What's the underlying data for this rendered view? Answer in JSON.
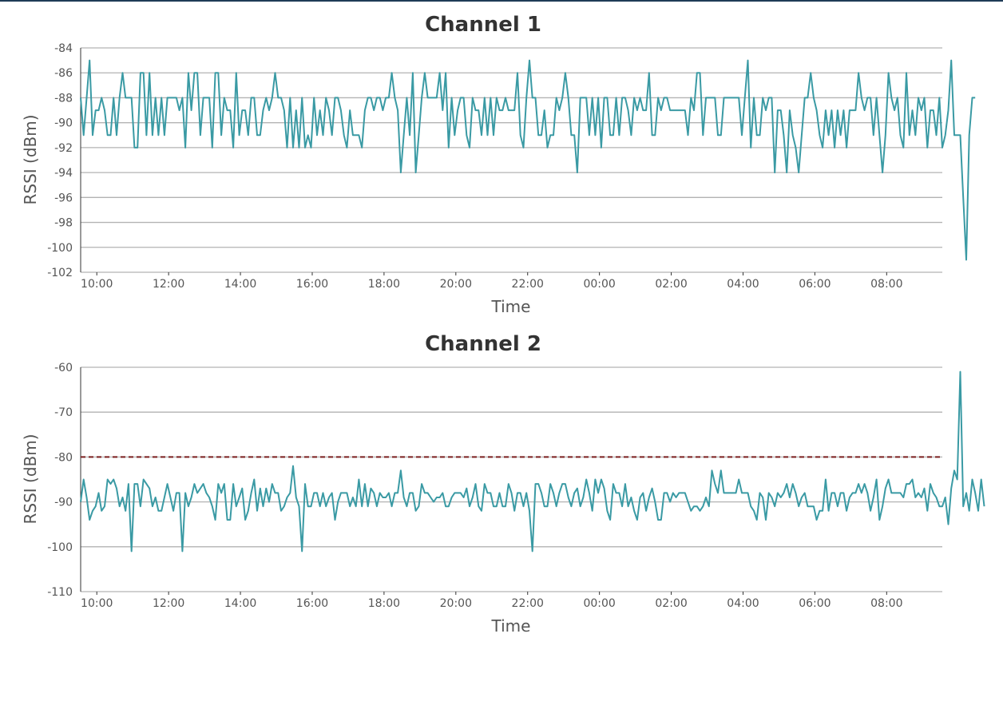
{
  "chart_data": [
    {
      "type": "line",
      "title": "Channel 1",
      "xlabel": "Time",
      "ylabel": "RSSI (dBm)",
      "x_tick_labels": [
        "10:00",
        "12:00",
        "14:00",
        "16:00",
        "18:00",
        "20:00",
        "22:00",
        "00:00",
        "02:00",
        "04:00",
        "06:00",
        "08:00"
      ],
      "x_range_hours": [
        9.55,
        33.55
      ],
      "ylim": [
        -102,
        -84
      ],
      "y_ticks": [
        -84,
        -86,
        -88,
        -90,
        -92,
        -94,
        -96,
        -98,
        -100,
        -102
      ],
      "grid": true,
      "color": "#3a9aa4",
      "series": [
        {
          "interval_minutes": 5,
          "values": [
            -88,
            -91,
            -88,
            -85,
            -91,
            -89,
            -89,
            -88,
            -89,
            -91,
            -91,
            -88,
            -91,
            -88,
            -86,
            -88,
            -88,
            -88,
            -92,
            -92,
            -86,
            -86,
            -91,
            -86,
            -91,
            -88,
            -91,
            -88,
            -91,
            -88,
            -88,
            -88,
            -88,
            -89,
            -88,
            -92,
            -86,
            -89,
            -86,
            -86,
            -91,
            -88,
            -88,
            -88,
            -92,
            -86,
            -86,
            -91,
            -88,
            -89,
            -89,
            -92,
            -86,
            -91,
            -89,
            -89,
            -91,
            -88,
            -88,
            -91,
            -91,
            -89,
            -88,
            -89,
            -88,
            -86,
            -88,
            -88,
            -89,
            -92,
            -88,
            -92,
            -89,
            -92,
            -88,
            -92,
            -91,
            -92,
            -88,
            -91,
            -89,
            -91,
            -88,
            -89,
            -91,
            -88,
            -88,
            -89,
            -91,
            -92,
            -89,
            -91,
            -91,
            -91,
            -92,
            -89,
            -88,
            -88,
            -89,
            -88,
            -88,
            -89,
            -88,
            -88,
            -86,
            -88,
            -89,
            -94,
            -91,
            -88,
            -91,
            -86,
            -94,
            -91,
            -88,
            -86,
            -88,
            -88,
            -88,
            -88,
            -86,
            -89,
            -86,
            -92,
            -88,
            -91,
            -89,
            -88,
            -88,
            -91,
            -92,
            -88,
            -89,
            -89,
            -91,
            -88,
            -91,
            -88,
            -91,
            -88,
            -89,
            -89,
            -88,
            -89,
            -89,
            -89,
            -86,
            -91,
            -92,
            -88,
            -85,
            -88,
            -88,
            -91,
            -91,
            -89,
            -92,
            -91,
            -91,
            -88,
            -89,
            -88,
            -86,
            -88,
            -91,
            -91,
            -94,
            -88,
            -88,
            -88,
            -91,
            -88,
            -91,
            -88,
            -92,
            -88,
            -88,
            -91,
            -91,
            -88,
            -91,
            -88,
            -88,
            -89,
            -91,
            -88,
            -89,
            -88,
            -89,
            -89,
            -86,
            -91,
            -91,
            -88,
            -89,
            -88,
            -88,
            -89,
            -89,
            -89,
            -89,
            -89,
            -89,
            -91,
            -88,
            -89,
            -86,
            -86,
            -91,
            -88,
            -88,
            -88,
            -88,
            -91,
            -91,
            -88,
            -88,
            -88,
            -88,
            -88,
            -88,
            -91,
            -88,
            -85,
            -92,
            -88,
            -91,
            -91,
            -88,
            -89,
            -88,
            -88,
            -94,
            -89,
            -89,
            -91,
            -94,
            -89,
            -91,
            -92,
            -94,
            -91,
            -88,
            -88,
            -86,
            -88,
            -89,
            -91,
            -92,
            -89,
            -91,
            -89,
            -92,
            -89,
            -91,
            -89,
            -92,
            -89,
            -89,
            -89,
            -86,
            -88,
            -89,
            -88,
            -88,
            -91,
            -88,
            -91,
            -94,
            -91,
            -86,
            -88,
            -89,
            -88,
            -91,
            -92,
            -86,
            -91,
            -89,
            -91,
            -88,
            -89,
            -88,
            -92,
            -89,
            -89,
            -91,
            -88,
            -92,
            -91,
            -89,
            -85,
            -91,
            -91,
            -91,
            -96,
            -101,
            -91,
            -88,
            -88
          ]
        }
      ]
    },
    {
      "type": "line",
      "title": "Channel 2",
      "xlabel": "Time",
      "ylabel": "RSSI (dBm)",
      "x_tick_labels": [
        "10:00",
        "12:00",
        "14:00",
        "16:00",
        "18:00",
        "20:00",
        "22:00",
        "00:00",
        "02:00",
        "04:00",
        "06:00",
        "08:00"
      ],
      "x_range_hours": [
        9.55,
        33.55
      ],
      "ylim": [
        -110,
        -60
      ],
      "y_ticks": [
        -60,
        -70,
        -80,
        -90,
        -100,
        -110
      ],
      "grid": true,
      "color": "#3a9aa4",
      "threshold": {
        "value": -80,
        "color": "#7a1f1f",
        "style": "dashed"
      },
      "series": [
        {
          "interval_minutes": 5,
          "values": [
            -90,
            -85,
            -89,
            -94,
            -92,
            -91,
            -88,
            -92,
            -91,
            -85,
            -86,
            -85,
            -87,
            -91,
            -89,
            -92,
            -86,
            -101,
            -86,
            -86,
            -91,
            -85,
            -86,
            -87,
            -91,
            -89,
            -92,
            -92,
            -89,
            -86,
            -89,
            -92,
            -88,
            -88,
            -101,
            -88,
            -91,
            -89,
            -86,
            -88,
            -87,
            -86,
            -88,
            -89,
            -91,
            -94,
            -86,
            -88,
            -86,
            -94,
            -94,
            -86,
            -91,
            -89,
            -87,
            -94,
            -92,
            -88,
            -85,
            -92,
            -87,
            -91,
            -87,
            -90,
            -86,
            -88,
            -88,
            -92,
            -91,
            -89,
            -88,
            -82,
            -89,
            -91,
            -101,
            -86,
            -91,
            -91,
            -88,
            -88,
            -91,
            -88,
            -91,
            -89,
            -88,
            -94,
            -90,
            -88,
            -88,
            -88,
            -91,
            -89,
            -91,
            -85,
            -91,
            -86,
            -91,
            -87,
            -88,
            -91,
            -88,
            -89,
            -89,
            -88,
            -91,
            -88,
            -88,
            -83,
            -89,
            -91,
            -88,
            -88,
            -92,
            -91,
            -86,
            -88,
            -88,
            -89,
            -90,
            -89,
            -89,
            -88,
            -91,
            -91,
            -89,
            -88,
            -88,
            -88,
            -89,
            -87,
            -91,
            -89,
            -86,
            -91,
            -92,
            -86,
            -88,
            -88,
            -91,
            -91,
            -88,
            -91,
            -91,
            -86,
            -88,
            -92,
            -88,
            -88,
            -91,
            -88,
            -92,
            -101,
            -86,
            -86,
            -88,
            -91,
            -91,
            -86,
            -88,
            -91,
            -88,
            -86,
            -86,
            -89,
            -91,
            -88,
            -87,
            -91,
            -89,
            -85,
            -88,
            -92,
            -85,
            -88,
            -85,
            -87,
            -92,
            -94,
            -86,
            -88,
            -88,
            -91,
            -86,
            -91,
            -89,
            -92,
            -94,
            -89,
            -88,
            -92,
            -89,
            -87,
            -90,
            -94,
            -94,
            -88,
            -88,
            -90,
            -88,
            -89,
            -88,
            -88,
            -88,
            -90,
            -92,
            -91,
            -91,
            -92,
            -91,
            -89,
            -91,
            -83,
            -86,
            -88,
            -83,
            -88,
            -88,
            -88,
            -88,
            -88,
            -85,
            -88,
            -88,
            -88,
            -91,
            -92,
            -94,
            -88,
            -89,
            -94,
            -88,
            -89,
            -91,
            -88,
            -89,
            -88,
            -86,
            -89,
            -86,
            -88,
            -91,
            -89,
            -88,
            -91,
            -91,
            -91,
            -94,
            -92,
            -92,
            -85,
            -92,
            -88,
            -88,
            -91,
            -88,
            -88,
            -92,
            -89,
            -88,
            -88,
            -86,
            -88,
            -86,
            -88,
            -92,
            -89,
            -85,
            -94,
            -91,
            -87,
            -85,
            -88,
            -88,
            -88,
            -88,
            -89,
            -86,
            -86,
            -85,
            -89,
            -88,
            -89,
            -87,
            -92,
            -86,
            -88,
            -89,
            -91,
            -91,
            -89,
            -95,
            -87,
            -83,
            -85,
            -61,
            -91,
            -88,
            -92,
            -85,
            -88,
            -92,
            -85,
            -91
          ]
        }
      ]
    }
  ]
}
